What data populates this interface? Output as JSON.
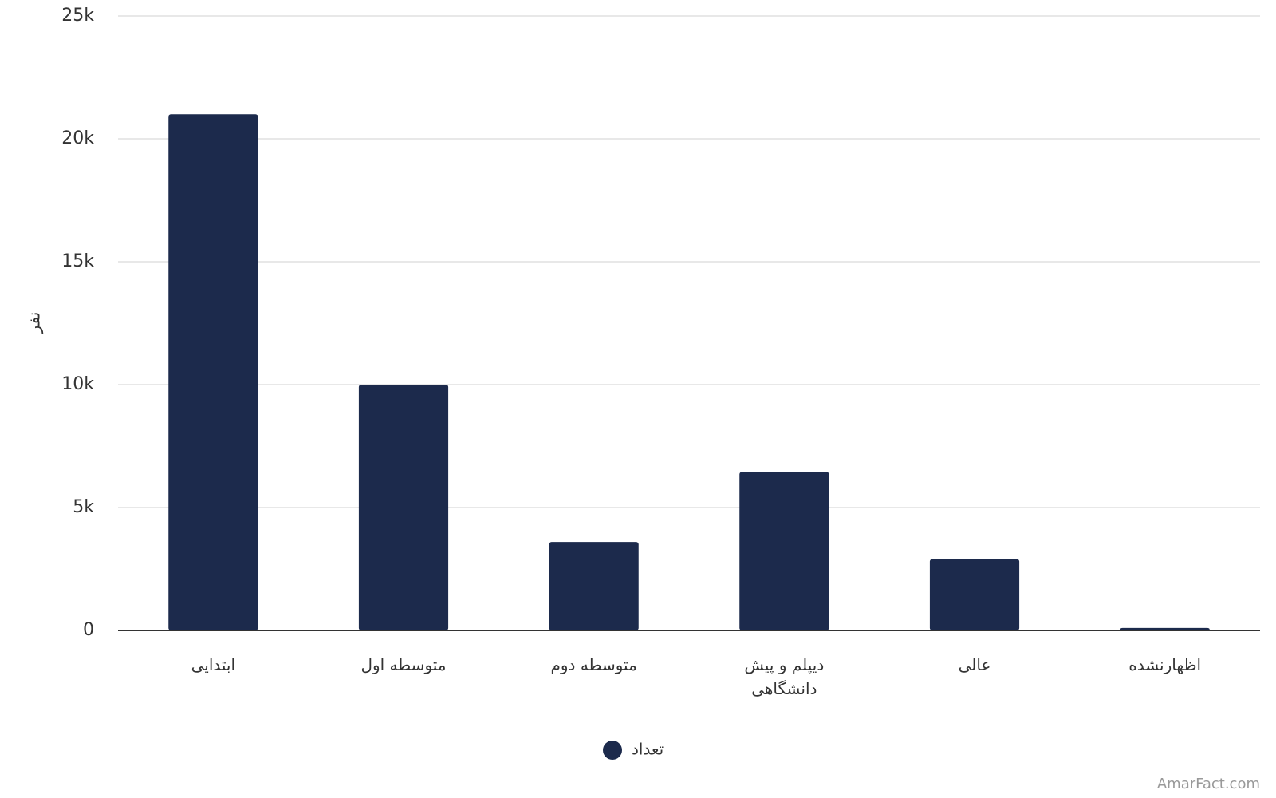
{
  "chart_data": {
    "type": "bar",
    "y_label": "نفر",
    "categories": [
      "ابتدایی",
      "متوسطه اول",
      "متوسطه دوم",
      "دیپلم و پیش دانشگاهی",
      "عالی",
      "اظهارنشده"
    ],
    "series": [
      {
        "name": "تعداد",
        "color": "#1c2a4c",
        "values": [
          21000,
          10000,
          3600,
          6450,
          2900,
          100
        ]
      }
    ],
    "ylim": [
      0,
      25000
    ],
    "yticks": [
      0,
      {
        "value": 5000,
        "label": "5k"
      },
      {
        "value": 10000,
        "label": "10k"
      },
      {
        "value": 15000,
        "label": "15k"
      },
      {
        "value": 20000,
        "label": "20k"
      },
      {
        "value": 25000,
        "label": "25k"
      }
    ],
    "grid": true,
    "legend": "bottom",
    "watermark": "AmarFact.com"
  }
}
